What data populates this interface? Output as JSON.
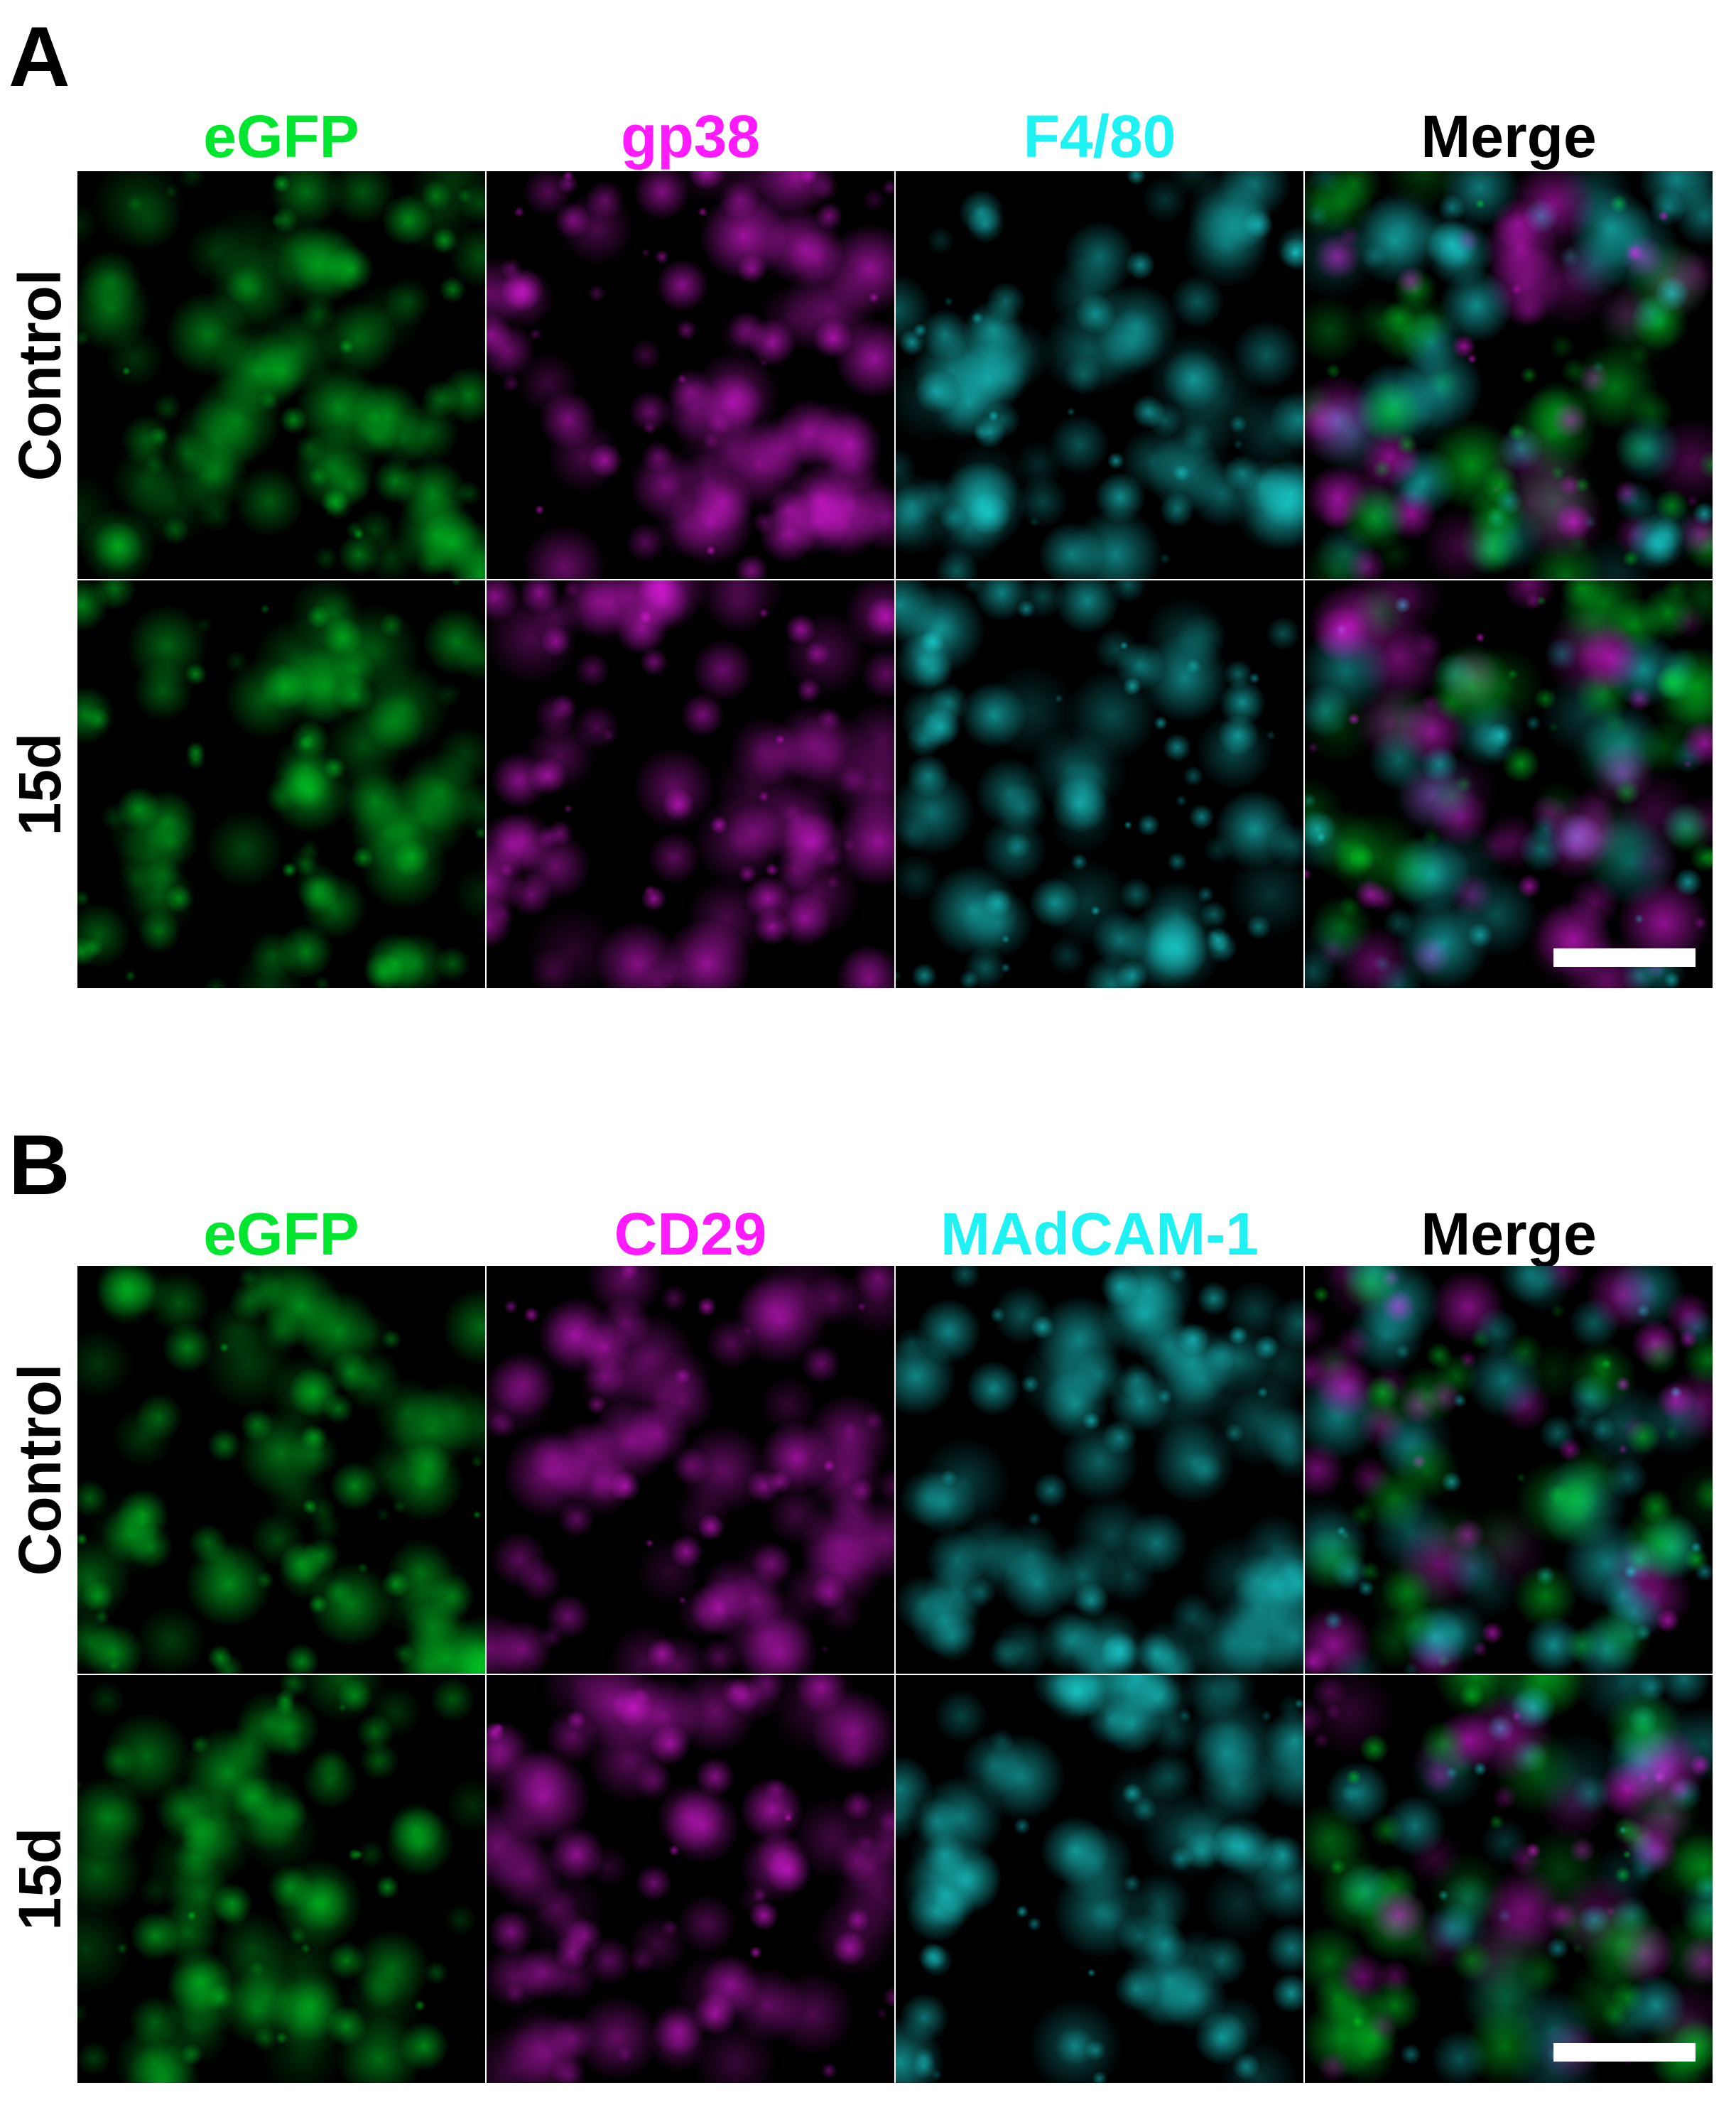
{
  "panels": [
    {
      "label": "A",
      "columns": [
        "eGFP",
        "gp38",
        "F4/80",
        "Merge"
      ],
      "rows": [
        "Control",
        "15d"
      ]
    },
    {
      "label": "B",
      "columns": [
        "eGFP",
        "CD29",
        "MAdCAM-1",
        "Merge"
      ],
      "rows": [
        "Control",
        "15d"
      ]
    }
  ]
}
